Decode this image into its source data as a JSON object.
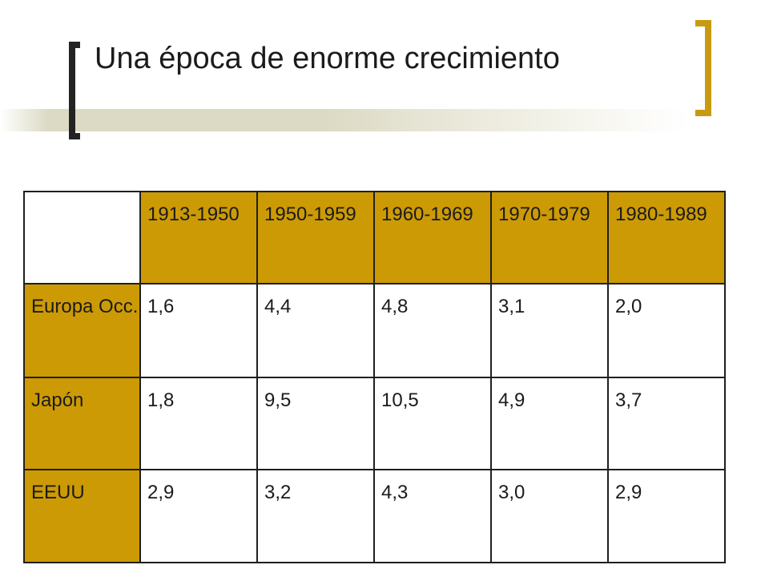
{
  "slide": {
    "title": "Una época de enorme crecimiento"
  },
  "table": {
    "columns": [
      "1913-1950",
      "1950-1959",
      "1960-1969",
      "1970-1979",
      "1980-1989"
    ],
    "rows": [
      {
        "label": "Europa Occ.",
        "values": [
          "1,6",
          "4,4",
          "4,8",
          "3,1",
          "2,0"
        ]
      },
      {
        "label": "Japón",
        "values": [
          "1,8",
          "9,5",
          "10,5",
          "4,9",
          "3,7"
        ]
      },
      {
        "label": "EEUU",
        "values": [
          "2,9",
          "3,2",
          "4,3",
          "3,0",
          "2,9"
        ]
      }
    ]
  },
  "colors": {
    "header_fill": "#cc9a05",
    "right_bracket": "#c79a0f",
    "left_bracket": "#232323"
  }
}
